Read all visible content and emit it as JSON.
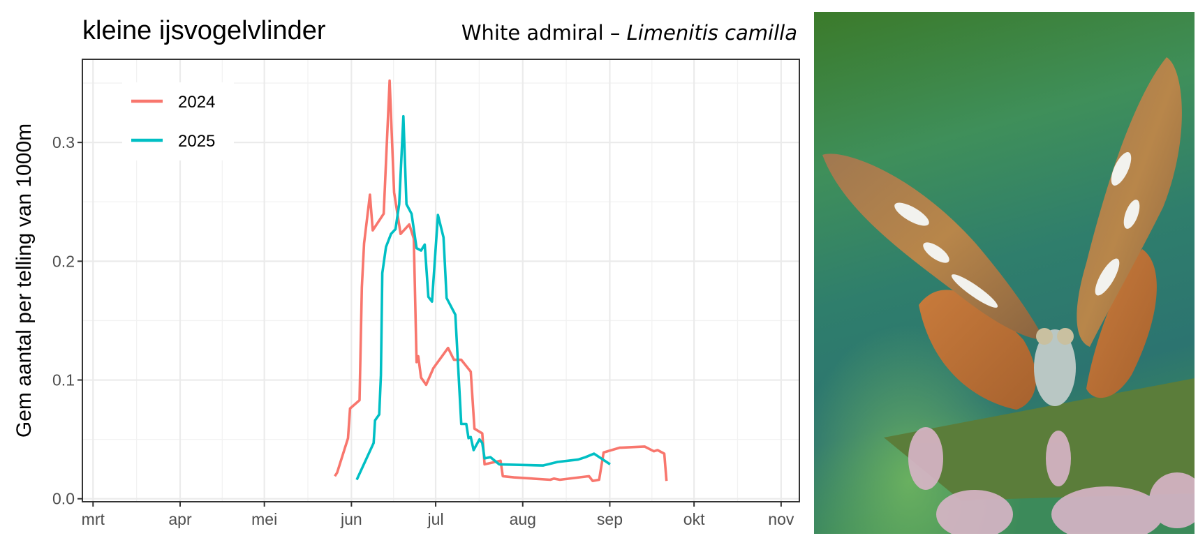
{
  "chart_data": {
    "type": "line",
    "title": "kleine ijsvogelvlinder",
    "subtitle_plain": "White admiral – ",
    "subtitle_italic": "Limenitis camilla",
    "xlabel": "",
    "ylabel": "Gem aantal per telling van 1000m",
    "x_unit": "days since 1 March",
    "xlim": [
      -3.8,
      251.5
    ],
    "ylim": [
      -0.0025,
      0.37
    ],
    "grid": true,
    "x_ticks": [
      {
        "label": "mrt",
        "value": 0
      },
      {
        "label": "apr",
        "value": 31
      },
      {
        "label": "mei",
        "value": 61
      },
      {
        "label": "jun",
        "value": 92
      },
      {
        "label": "jul",
        "value": 122
      },
      {
        "label": "aug",
        "value": 153
      },
      {
        "label": "sep",
        "value": 184
      },
      {
        "label": "okt",
        "value": 214
      },
      {
        "label": "nov",
        "value": 245
      }
    ],
    "y_ticks": [
      {
        "label": "0.0",
        "value": 0.0
      },
      {
        "label": "0.1",
        "value": 0.1
      },
      {
        "label": "0.2",
        "value": 0.2
      },
      {
        "label": "0.3",
        "value": 0.3
      }
    ],
    "legend_position": "top-left",
    "series": [
      {
        "name": "2024",
        "color": "#F8766D",
        "x": [
          86.1,
          86.9,
          90.8,
          91.5,
          94.9,
          95.7,
          96.5,
          98.6,
          99.6,
          103.5,
          105.6,
          107.2,
          109.5,
          112.6,
          114.2,
          115.2,
          115.8,
          116.8,
          118.6,
          121.2,
          126.4,
          128.5,
          131.1,
          134.5,
          135.8,
          138.6,
          139.4,
          145.1,
          145.9,
          149.8,
          162.8,
          164.1,
          166.2,
          176.6,
          177.9,
          180.2,
          181.8,
          187.5,
          196.4,
          199.7,
          201.0,
          203.4,
          204.2
        ],
        "y": [
          0.019,
          0.022,
          0.051,
          0.076,
          0.083,
          0.178,
          0.215,
          0.256,
          0.226,
          0.24,
          0.352,
          0.258,
          0.223,
          0.231,
          0.219,
          0.115,
          0.12,
          0.102,
          0.096,
          0.11,
          0.127,
          0.117,
          0.117,
          0.107,
          0.059,
          0.055,
          0.029,
          0.032,
          0.019,
          0.018,
          0.016,
          0.017,
          0.016,
          0.019,
          0.015,
          0.016,
          0.039,
          0.043,
          0.044,
          0.04,
          0.041,
          0.038,
          0.015
        ]
      },
      {
        "name": "2025",
        "color": "#00BFC4",
        "x": [
          93.9,
          99.9,
          100.4,
          101.9,
          102.5,
          103.0,
          104.3,
          106.1,
          107.7,
          109.0,
          110.5,
          111.6,
          113.4,
          115.2,
          116.8,
          118.1,
          119.4,
          120.7,
          122.8,
          124.8,
          125.9,
          129.0,
          131.1,
          132.9,
          133.7,
          134.5,
          135.5,
          137.6,
          138.6,
          139.4,
          141.5,
          144.6,
          160.2,
          165.4,
          172.7,
          175.3,
          178.4,
          184.1
        ],
        "y": [
          0.016,
          0.047,
          0.066,
          0.071,
          0.104,
          0.19,
          0.212,
          0.223,
          0.227,
          0.248,
          0.322,
          0.248,
          0.24,
          0.211,
          0.209,
          0.214,
          0.17,
          0.166,
          0.239,
          0.22,
          0.169,
          0.155,
          0.063,
          0.063,
          0.051,
          0.052,
          0.041,
          0.05,
          0.047,
          0.034,
          0.035,
          0.029,
          0.028,
          0.031,
          0.033,
          0.035,
          0.038,
          0.029
        ]
      }
    ]
  },
  "photo": {
    "description": "White admiral butterfly (Limenitis camilla) perched on a leaf with pink flowers"
  },
  "colors": {
    "background": "#ffffff",
    "panel_border": "#333333",
    "grid": "#ebebeb"
  }
}
